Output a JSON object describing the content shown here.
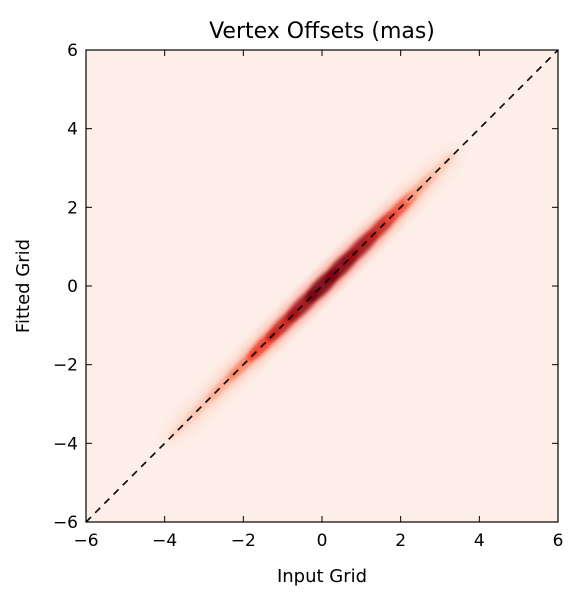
{
  "chart_data": {
    "type": "heatmap",
    "title": "Vertex Offsets (mas)",
    "xlabel": "Input Grid",
    "ylabel": "Fitted Grid",
    "xlim": [
      -6,
      6
    ],
    "ylim": [
      -6,
      6
    ],
    "xticks": [
      -6,
      -4,
      -2,
      0,
      2,
      4,
      6
    ],
    "yticks": [
      -6,
      -4,
      -2,
      0,
      2,
      4,
      6
    ],
    "xtick_labels": [
      "−6",
      "−4",
      "−2",
      "0",
      "2",
      "4",
      "6"
    ],
    "ytick_labels": [
      "−6",
      "−4",
      "−2",
      "0",
      "2",
      "4",
      "6"
    ],
    "grid": false,
    "colormap": "Reds",
    "background_color": "#fdeee8",
    "reference_line": {
      "style": "dashed",
      "color": "#000000",
      "x": [
        -6,
        6
      ],
      "y": [
        -6,
        6
      ]
    },
    "density_along_diagonal": {
      "x": [
        -3.5,
        -3.0,
        -2.5,
        -2.0,
        -1.5,
        -1.0,
        -0.5,
        0.0,
        0.5,
        1.0,
        1.5,
        2.0,
        2.5,
        3.0
      ],
      "intensity": [
        0.05,
        0.1,
        0.18,
        0.3,
        0.5,
        0.65,
        0.8,
        0.95,
        0.9,
        0.8,
        0.65,
        0.45,
        0.2,
        0.08
      ]
    }
  }
}
